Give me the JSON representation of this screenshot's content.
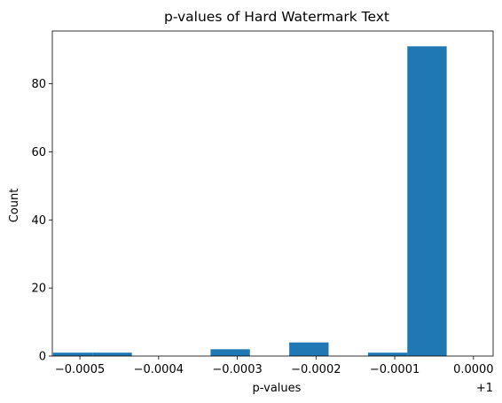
{
  "chart_data": {
    "type": "bar",
    "title": "p-values of Hard Watermark Text",
    "xlabel": "p-values",
    "ylabel": "Count",
    "x_offset_label": "+1",
    "x_offset": 1,
    "xlim": [
      -0.000535,
      2.5e-05
    ],
    "ylim": [
      0,
      95.5
    ],
    "bar_color": "#1f77b4",
    "grid": false,
    "bins": [
      {
        "start": -0.000534,
        "end": -0.000484,
        "count": 1
      },
      {
        "start": -0.000484,
        "end": -0.000434,
        "count": 1
      },
      {
        "start": -0.000434,
        "end": -0.000384,
        "count": 0
      },
      {
        "start": -0.000384,
        "end": -0.000334,
        "count": 0
      },
      {
        "start": -0.000334,
        "end": -0.000284,
        "count": 2
      },
      {
        "start": -0.000284,
        "end": -0.000234,
        "count": 0
      },
      {
        "start": -0.000234,
        "end": -0.000184,
        "count": 4
      },
      {
        "start": -0.000184,
        "end": -0.000134,
        "count": 0
      },
      {
        "start": -0.000134,
        "end": -8.4e-05,
        "count": 1
      },
      {
        "start": -8.4e-05,
        "end": -3.4e-05,
        "count": 91
      }
    ],
    "x_ticks": [
      {
        "value": -0.0005,
        "label": "−0.0005"
      },
      {
        "value": -0.0004,
        "label": "−0.0004"
      },
      {
        "value": -0.0003,
        "label": "−0.0003"
      },
      {
        "value": -0.0002,
        "label": "−0.0002"
      },
      {
        "value": -0.0001,
        "label": "−0.0001"
      },
      {
        "value": 0.0,
        "label": "0.0000"
      }
    ],
    "y_ticks": [
      {
        "value": 0,
        "label": "0"
      },
      {
        "value": 20,
        "label": "20"
      },
      {
        "value": 40,
        "label": "40"
      },
      {
        "value": 60,
        "label": "60"
      },
      {
        "value": 80,
        "label": "80"
      }
    ]
  }
}
